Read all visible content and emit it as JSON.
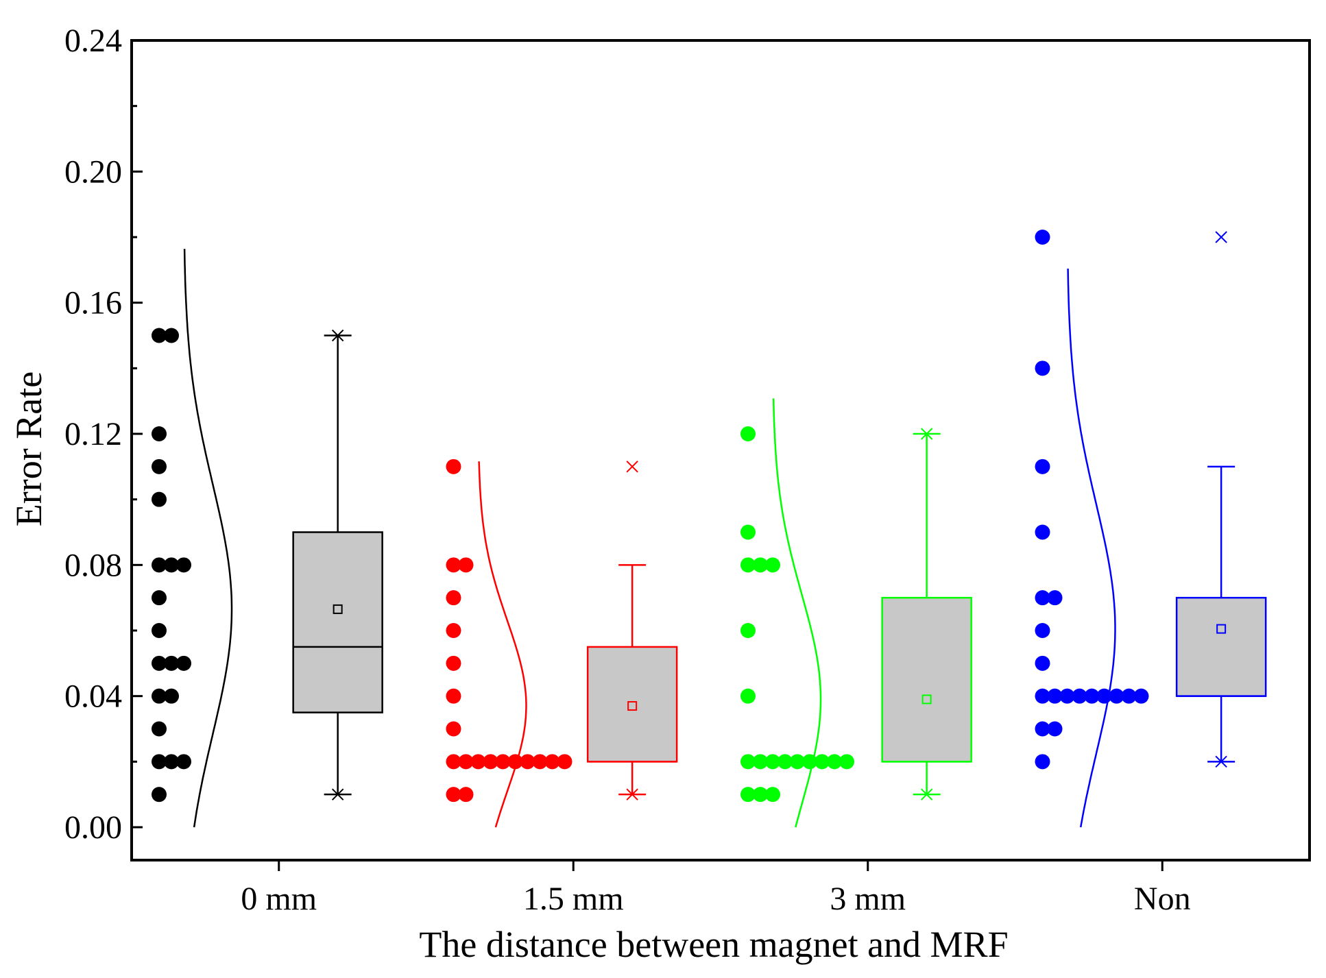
{
  "chart_data": {
    "type": "box-with-jitter-and-density",
    "xlabel": "The distance between magnet and MRF",
    "ylabel": "Error Rate",
    "ylim": [
      0.0,
      0.24
    ],
    "yticks": [
      0.0,
      0.04,
      0.08,
      0.12,
      0.16,
      0.2,
      0.24
    ],
    "ytick_labels": [
      "0.00",
      "0.04",
      "0.08",
      "0.12",
      "0.16",
      "0.20",
      "0.24"
    ],
    "categories": [
      "0 mm",
      "1.5 mm",
      "3 mm",
      "Non"
    ],
    "grid": false,
    "series": [
      {
        "name": "0 mm",
        "color": "#000000",
        "points": [
          0.15,
          0.15,
          0.12,
          0.11,
          0.1,
          0.08,
          0.08,
          0.08,
          0.07,
          0.06,
          0.05,
          0.05,
          0.05,
          0.04,
          0.04,
          0.03,
          0.02,
          0.02,
          0.02,
          0.01
        ],
        "box": {
          "q1": 0.035,
          "median": 0.055,
          "q3": 0.09,
          "mean": 0.0665,
          "whisker_low": 0.01,
          "whisker_high": 0.15
        },
        "minmax_markers": [
          0.01,
          0.15
        ],
        "density": {
          "mean": 0.0665,
          "sd": 0.038
        }
      },
      {
        "name": "1.5 mm",
        "color": "#ff0000",
        "points": [
          0.11,
          0.08,
          0.08,
          0.07,
          0.06,
          0.05,
          0.04,
          0.03,
          0.02,
          0.02,
          0.02,
          0.02,
          0.02,
          0.02,
          0.02,
          0.02,
          0.02,
          0.02,
          0.01,
          0.01
        ],
        "box": {
          "q1": 0.02,
          "median": 0.02,
          "q3": 0.055,
          "mean": 0.037,
          "whisker_low": 0.01,
          "whisker_high": 0.08
        },
        "minmax_markers": [
          0.01,
          0.11
        ],
        "density": {
          "mean": 0.037,
          "sd": 0.026
        }
      },
      {
        "name": "3 mm",
        "color": "#00ff00",
        "points": [
          0.12,
          0.09,
          0.08,
          0.08,
          0.08,
          0.06,
          0.04,
          0.02,
          0.02,
          0.02,
          0.02,
          0.02,
          0.02,
          0.02,
          0.02,
          0.02,
          0.01,
          0.01,
          0.01
        ],
        "box": {
          "q1": 0.02,
          "median": 0.02,
          "q3": 0.07,
          "mean": 0.039,
          "whisker_low": 0.01,
          "whisker_high": 0.12
        },
        "minmax_markers": [
          0.01,
          0.12
        ],
        "density": {
          "mean": 0.039,
          "sd": 0.032
        }
      },
      {
        "name": "Non",
        "color": "#0000ff",
        "points": [
          0.18,
          0.14,
          0.11,
          0.09,
          0.07,
          0.07,
          0.06,
          0.05,
          0.04,
          0.04,
          0.04,
          0.04,
          0.04,
          0.04,
          0.04,
          0.04,
          0.04,
          0.03,
          0.03,
          0.02
        ],
        "box": {
          "q1": 0.04,
          "median": 0.04,
          "q3": 0.07,
          "mean": 0.0605,
          "whisker_low": 0.02,
          "whisker_high": 0.11
        },
        "minmax_markers": [
          0.02,
          0.18
        ],
        "density": {
          "mean": 0.0605,
          "sd": 0.038
        }
      }
    ]
  }
}
